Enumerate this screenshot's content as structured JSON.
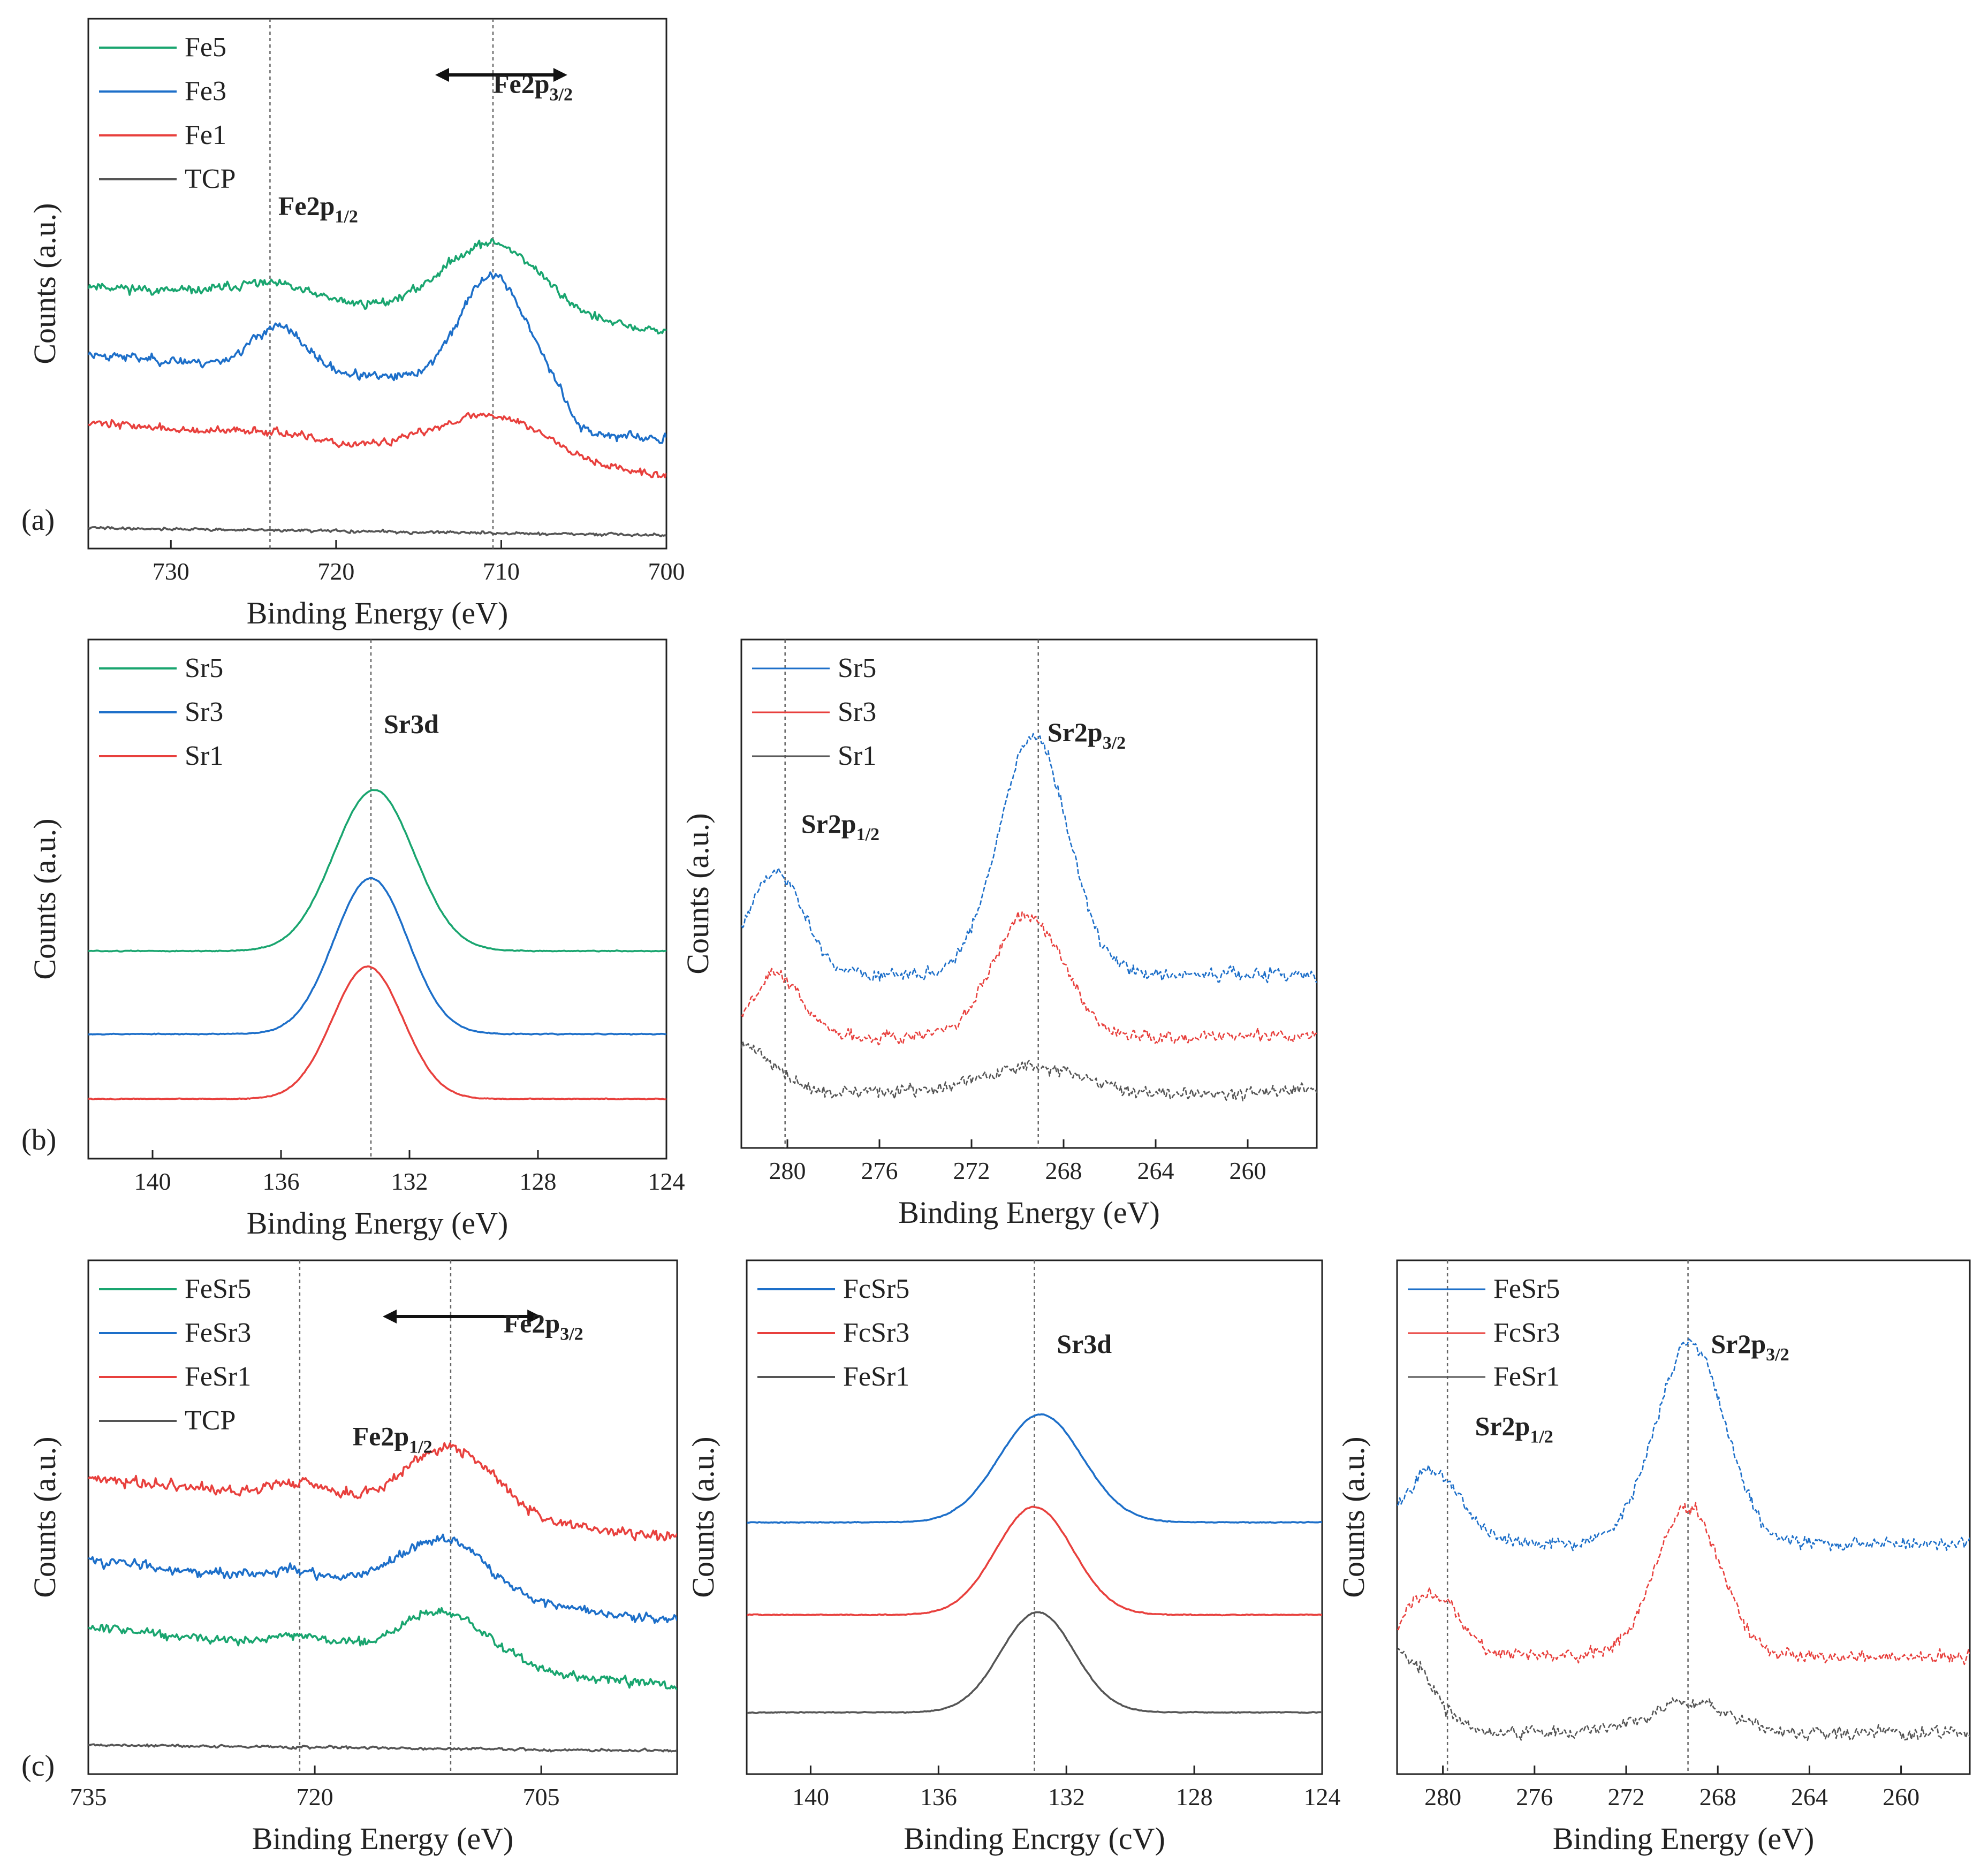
{
  "figure_labels": {
    "a": "(a)",
    "b": "(b)",
    "c": "(c)"
  },
  "chart_data": [
    {
      "id": "a",
      "type": "line",
      "title": "",
      "xlabel": "Binding Energy (eV)",
      "ylabel": "Counts (a.u.)",
      "xlim": [
        735,
        700
      ],
      "xticks": [
        730,
        720,
        710,
        700
      ],
      "ylim": [
        0,
        10
      ],
      "legend": "top-left",
      "guides": [
        724,
        710.5
      ],
      "arrow": [
        714,
        706
      ],
      "annotations": [
        {
          "text": "Fe2p",
          "sub": "3/2",
          "x": 710.5,
          "y": 8.6
        },
        {
          "text": "Fe2p",
          "sub": "1/2",
          "x": 723.5,
          "y": 6.3
        }
      ],
      "series": [
        {
          "name": "Fe5",
          "color": "#19a56f",
          "dashed": false,
          "base": 4.1,
          "slope": 0.025,
          "noise": 0.08,
          "seed": 11,
          "peaks": [
            [
              724,
              0.3,
              2.5
            ],
            [
              710.5,
              1.4,
              3.0
            ]
          ],
          "drop": null
        },
        {
          "name": "Fe3",
          "color": "#1d6fc9",
          "dashed": false,
          "base": 2.8,
          "slope": 0.025,
          "noise": 0.08,
          "seed": 23,
          "peaks": [
            [
              723.5,
              0.8,
              1.6
            ],
            [
              710.5,
              2.1,
              2.0
            ]
          ],
          "drop": [
            706,
            0.75
          ]
        },
        {
          "name": "Fe1",
          "color": "#e8403d",
          "dashed": false,
          "base": 1.35,
          "slope": 0.03,
          "noise": 0.07,
          "seed": 37,
          "peaks": [
            [
              724,
              0.15,
              2.0
            ],
            [
              710.5,
              0.85,
              3.5
            ]
          ],
          "drop": null
        },
        {
          "name": "TCP",
          "color": "#555555",
          "dashed": false,
          "base": 0.25,
          "slope": 0.004,
          "noise": 0.025,
          "seed": 41,
          "peaks": [],
          "drop": null
        }
      ]
    },
    {
      "id": "b1",
      "type": "line",
      "title": "",
      "xlabel": "Binding Energy (eV)",
      "ylabel": "Counts (a.u.)",
      "xlim": [
        142,
        124
      ],
      "xticks": [
        140,
        136,
        132,
        128,
        124
      ],
      "ylim": [
        0,
        10
      ],
      "legend": "top-left",
      "guides": [
        133.2
      ],
      "annotations": [
        {
          "text": "Sr3d",
          "sub": "",
          "x": 132.8,
          "y": 8.2
        }
      ],
      "series": [
        {
          "name": "Sr5",
          "color": "#19a56f",
          "dashed": false,
          "base": 4.0,
          "slope": 0,
          "noise": 0.008,
          "seed": 51,
          "peaks": [
            [
              133.1,
              3.1,
              1.25
            ]
          ],
          "drop": null
        },
        {
          "name": "Sr3",
          "color": "#1d6fc9",
          "dashed": false,
          "base": 2.4,
          "slope": 0,
          "noise": 0.008,
          "seed": 53,
          "peaks": [
            [
              133.2,
              3.0,
              1.15
            ]
          ],
          "drop": null
        },
        {
          "name": "Sr1",
          "color": "#e8403d",
          "dashed": false,
          "base": 1.15,
          "slope": 0,
          "noise": 0.008,
          "seed": 57,
          "peaks": [
            [
              133.3,
              2.55,
              1.1
            ]
          ],
          "drop": null
        }
      ]
    },
    {
      "id": "b2",
      "type": "line",
      "title": "",
      "xlabel": "Binding Energy (eV)",
      "ylabel": "Counts (a.u.)",
      "xlim": [
        282,
        257
      ],
      "xticks": [
        280,
        276,
        272,
        268,
        264,
        260
      ],
      "ylim": [
        0,
        10
      ],
      "legend": "top-left",
      "guides": [
        280.1,
        269.1
      ],
      "annotations": [
        {
          "text": "Sr2p",
          "sub": "3/2",
          "x": 268.7,
          "y": 8.0
        },
        {
          "text": "Sr2p",
          "sub": "1/2",
          "x": 279.4,
          "y": 6.2
        }
      ],
      "series": [
        {
          "name": "Sr5",
          "color": "#1d6fc9",
          "dashed": true,
          "base": 3.4,
          "slope": 0,
          "noise": 0.12,
          "seed": 61,
          "peaks": [
            [
              280.5,
              2.0,
              1.2
            ],
            [
              269.3,
              4.7,
              1.5
            ]
          ],
          "drop": null
        },
        {
          "name": "Sr3",
          "color": "#e8403d",
          "dashed": true,
          "base": 2.2,
          "slope": 0,
          "noise": 0.12,
          "seed": 67,
          "peaks": [
            [
              280.5,
              1.2,
              1.1
            ],
            [
              269.5,
              2.4,
              1.5
            ]
          ],
          "drop": null
        },
        {
          "name": "Sr1",
          "color": "#555555",
          "dashed": true,
          "base": 1.1,
          "slope": 0,
          "noise": 0.12,
          "seed": 71,
          "peaks": [
            [
              281.8,
              0.9,
              1.2
            ],
            [
              269.5,
              0.5,
              2.0
            ]
          ],
          "drop": null
        }
      ]
    },
    {
      "id": "c1",
      "type": "line",
      "title": "",
      "xlabel": "Binding Energy (eV)",
      "ylabel": "Counts (a.u.)",
      "xlim": [
        735,
        696
      ],
      "xticks": [
        735,
        720,
        705
      ],
      "ylim": [
        0,
        10
      ],
      "legend": "top-left",
      "guides": [
        721,
        711
      ],
      "arrow": [
        715.5,
        705
      ],
      "annotations": [
        {
          "text": "Fe2p",
          "sub": "3/2",
          "x": 707.5,
          "y": 8.6
        },
        {
          "text": "Fe2p",
          "sub": "1/2",
          "x": 717.5,
          "y": 6.4
        }
      ],
      "series": [
        {
          "name": "FeSr5",
          "color": "#19a56f",
          "dashed": false,
          "base": 1.7,
          "slope": 0.03,
          "noise": 0.09,
          "seed": 81,
          "peaks": [
            [
              721,
              0.25,
              2.0
            ],
            [
              711.5,
              1.0,
              3.0
            ]
          ],
          "drop": null
        },
        {
          "name": "FeSr3",
          "color": "#1d6fc9",
          "dashed": false,
          "base": 3.0,
          "slope": 0.03,
          "noise": 0.09,
          "seed": 83,
          "peaks": [
            [
              721,
              0.2,
              2.0
            ],
            [
              711.5,
              1.1,
              3.0
            ]
          ],
          "drop": null
        },
        {
          "name": "FeSr1",
          "color": "#e8403d",
          "dashed": false,
          "base": 4.6,
          "slope": 0.03,
          "noise": 0.1,
          "seed": 87,
          "peaks": [
            [
              721,
              0.35,
              2.0
            ],
            [
              711,
              1.3,
              3.0
            ]
          ],
          "drop": null
        },
        {
          "name": "TCP",
          "color": "#555555",
          "dashed": false,
          "base": 0.45,
          "slope": 0.003,
          "noise": 0.025,
          "seed": 89,
          "peaks": [],
          "drop": null
        }
      ]
    },
    {
      "id": "c2",
      "type": "line",
      "title": "",
      "xlabel": "Binding Encrgy (cV)",
      "ylabel": "Counts (a.u.)",
      "xlim": [
        142,
        124
      ],
      "xticks": [
        140,
        136,
        132,
        128,
        124
      ],
      "ylim": [
        0,
        10
      ],
      "legend": "top-left",
      "guides": [
        133
      ],
      "annotations": [
        {
          "text": "Sr3d",
          "sub": "",
          "x": 132.3,
          "y": 8.2
        }
      ],
      "series": [
        {
          "name": "FcSr5",
          "color": "#1d6fc9",
          "dashed": false,
          "base": 4.9,
          "slope": 0,
          "noise": 0.008,
          "seed": 91,
          "peaks": [
            [
              132.8,
              2.1,
              1.3
            ]
          ],
          "drop": null
        },
        {
          "name": "FcSr3",
          "color": "#e8403d",
          "dashed": false,
          "base": 3.1,
          "slope": 0,
          "noise": 0.008,
          "seed": 93,
          "peaks": [
            [
              133.0,
              2.1,
              1.2
            ]
          ],
          "drop": null
        },
        {
          "name": "FeSr1",
          "color": "#555555",
          "dashed": false,
          "base": 1.2,
          "slope": 0,
          "noise": 0.008,
          "seed": 97,
          "peaks": [
            [
              132.9,
              1.95,
              1.15
            ]
          ],
          "drop": null
        }
      ]
    },
    {
      "id": "c3",
      "type": "line",
      "title": "",
      "xlabel": "Binding Energy (eV)",
      "ylabel": "Counts (a.u.)",
      "xlim": [
        282,
        257
      ],
      "xticks": [
        280,
        276,
        272,
        268,
        264,
        260
      ],
      "ylim": [
        0,
        10
      ],
      "legend": "top-left",
      "guides": [
        279.8,
        269.3
      ],
      "annotations": [
        {
          "text": "Sr2p",
          "sub": "3/2",
          "x": 268.3,
          "y": 8.2
        },
        {
          "text": "Sr2p",
          "sub": "1/2",
          "x": 278.6,
          "y": 6.6
        }
      ],
      "series": [
        {
          "name": "FeSr5",
          "color": "#1d6fc9",
          "dashed": true,
          "base": 4.5,
          "slope": 0,
          "noise": 0.12,
          "seed": 101,
          "peaks": [
            [
              280.5,
              1.4,
              1.3
            ],
            [
              269.2,
              3.9,
              1.5
            ]
          ],
          "drop": null
        },
        {
          "name": "FcSr3",
          "color": "#e8403d",
          "dashed": true,
          "base": 2.3,
          "slope": 0,
          "noise": 0.12,
          "seed": 103,
          "peaks": [
            [
              280.5,
              1.2,
              1.2
            ],
            [
              269.3,
              2.9,
              1.4
            ]
          ],
          "drop": null
        },
        {
          "name": "FeSr1",
          "color": "#555555",
          "dashed": true,
          "base": 0.8,
          "slope": 0,
          "noise": 0.12,
          "seed": 107,
          "peaks": [
            [
              282,
              1.6,
              1.4
            ],
            [
              269.3,
              0.6,
              1.8
            ]
          ],
          "drop": null
        }
      ]
    }
  ]
}
